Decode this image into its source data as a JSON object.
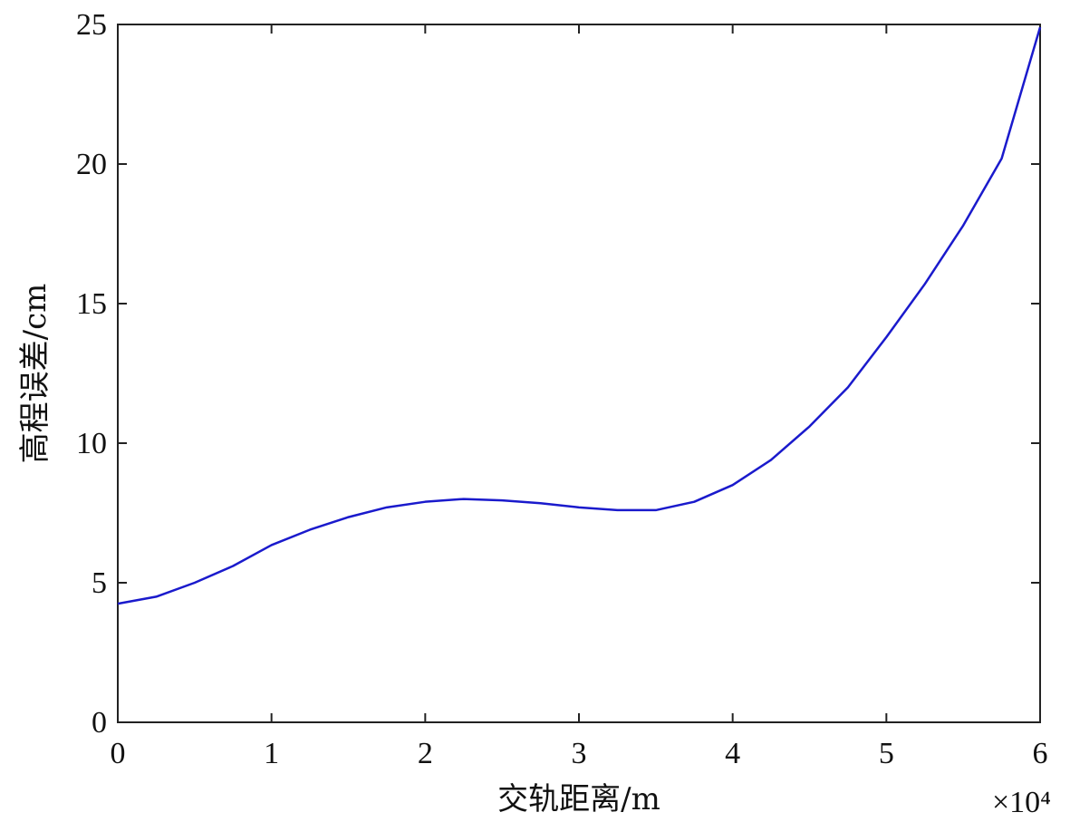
{
  "chart_data": {
    "type": "line",
    "xlabel": "交轨距离/m",
    "ylabel": "高程误差/cm",
    "x_multiplier": "×10⁴",
    "x": [
      0,
      0.25,
      0.5,
      0.75,
      1,
      1.25,
      1.5,
      1.75,
      2,
      2.25,
      2.5,
      2.75,
      3,
      3.25,
      3.5,
      3.75,
      4,
      4.25,
      4.5,
      4.75,
      5,
      5.25,
      5.5,
      5.75,
      6
    ],
    "series": [
      {
        "color": "#1a1acc",
        "values": [
          4.25,
          4.5,
          5.0,
          5.6,
          6.35,
          6.9,
          7.35,
          7.7,
          7.9,
          8.0,
          7.95,
          7.85,
          7.7,
          7.6,
          7.6,
          7.9,
          8.5,
          9.4,
          10.6,
          12.0,
          13.8,
          15.7,
          17.8,
          20.2,
          24.9
        ]
      }
    ],
    "xlim": [
      0,
      6
    ],
    "xticks": [
      0,
      1,
      2,
      3,
      4,
      5,
      6
    ],
    "ylim": [
      0,
      25
    ],
    "yticks": [
      0,
      5,
      10,
      15,
      20,
      25
    ]
  }
}
